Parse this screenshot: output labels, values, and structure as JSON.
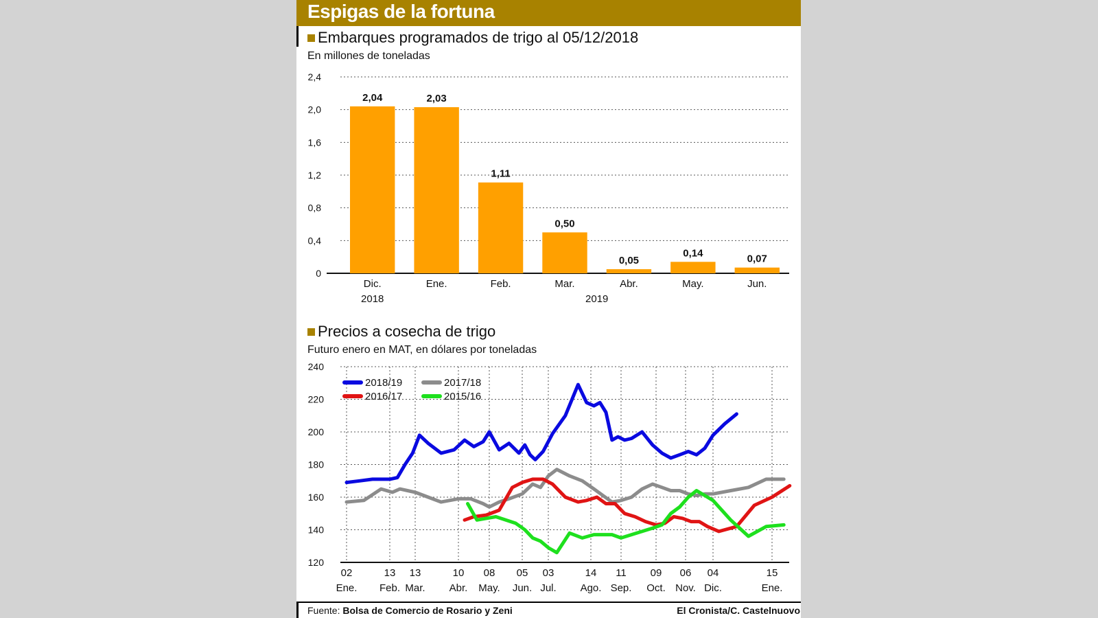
{
  "header": {
    "title": "Espigas de la fortuna"
  },
  "colors": {
    "banner": "#a88200",
    "bar": "#ffa000",
    "s2018": "#0a0ae0",
    "s2017": "#8c8c8c",
    "s2016": "#e01414",
    "s2015": "#1ee01e"
  },
  "chart_data": [
    {
      "type": "bar",
      "title": "Embarques programados de trigo al 05/12/2018",
      "subtitle": "En millones de toneladas",
      "categories": [
        "Dic.",
        "Ene.",
        "Feb.",
        "Mar.",
        "Abr.",
        "May.",
        "Jun."
      ],
      "year_labels": [
        "2018",
        "2019"
      ],
      "values": [
        2.04,
        2.03,
        1.11,
        0.5,
        0.05,
        0.14,
        0.07
      ],
      "value_labels": [
        "2,04",
        "2,03",
        "1,11",
        "0,50",
        "0,05",
        "0,14",
        "0,07"
      ],
      "yticks": [
        "0",
        "0,4",
        "0,8",
        "1,2",
        "1,6",
        "2,0",
        "2,4"
      ],
      "ylim": [
        0,
        2.4
      ],
      "grid": true
    },
    {
      "type": "line",
      "title": "Precios a cosecha de trigo",
      "subtitle": "Futuro enero en MAT, en dólares por toneladas",
      "ylim": [
        120,
        240
      ],
      "yticks": [
        "120",
        "140",
        "160",
        "180",
        "200",
        "220",
        "240"
      ],
      "xticks": [
        {
          "day": "02",
          "month": "Ene."
        },
        {
          "day": "13",
          "month": "Feb."
        },
        {
          "day": "13",
          "month": "Mar."
        },
        {
          "day": "10",
          "month": "Abr."
        },
        {
          "day": "08",
          "month": "May."
        },
        {
          "day": "05",
          "month": "Jun."
        },
        {
          "day": "03",
          "month": "Jul."
        },
        {
          "day": "14",
          "month": "Ago."
        },
        {
          "day": "11",
          "month": "Sep."
        },
        {
          "day": "09",
          "month": "Oct."
        },
        {
          "day": "06",
          "month": "Nov."
        },
        {
          "day": "04",
          "month": "Dic."
        },
        {
          "day": "15",
          "month": "Ene."
        }
      ],
      "grid": true,
      "legend": "top-left",
      "series": [
        {
          "name": "2018/19",
          "color": "#0a0ae0",
          "x": [
            0,
            0.3,
            0.6,
            1.0,
            1.3,
            1.6,
            1.9,
            2.1,
            2.3,
            2.6,
            2.9,
            3.2,
            3.5,
            3.8,
            4.0,
            4.3,
            4.6,
            4.9,
            5.1,
            5.3,
            5.5,
            5.8,
            6.1,
            6.4,
            6.7,
            6.9,
            7.1,
            7.3,
            7.5,
            7.7,
            7.9,
            8.1,
            8.3,
            8.6,
            8.9,
            9.2,
            9.5,
            9.8,
            10.1,
            10.4,
            10.7,
            11.0,
            11.2,
            11.4
          ],
          "y": [
            169,
            170,
            171,
            171,
            172,
            180,
            187,
            198,
            193,
            187,
            189,
            195,
            191,
            194,
            200,
            189,
            193,
            187,
            192,
            186,
            183,
            188,
            199,
            210,
            229,
            218,
            216,
            218,
            212,
            195,
            197,
            195,
            196,
            200,
            192,
            187,
            184,
            186,
            188,
            186,
            190,
            198,
            205,
            211
          ]
        },
        {
          "name": "2017/18",
          "color": "#8c8c8c",
          "x": [
            0,
            0.4,
            0.8,
            1.1,
            1.4,
            1.7,
            2.0,
            2.3,
            2.6,
            3.0,
            3.4,
            3.8,
            4.0,
            4.3,
            4.6,
            5.0,
            5.4,
            5.7,
            6.0,
            6.2,
            6.5,
            6.8,
            7.1,
            7.4,
            7.7,
            8.0,
            8.3,
            8.6,
            8.9,
            9.2,
            9.5,
            9.8,
            10.1,
            10.4,
            10.7,
            11.0,
            11.3,
            11.6,
            11.9,
            12.2
          ],
          "y": [
            157,
            158,
            165,
            163,
            165,
            164,
            163,
            160,
            157,
            159,
            159,
            156,
            154,
            157,
            159,
            162,
            168,
            166,
            173,
            177,
            173,
            170,
            165,
            161,
            157,
            158,
            160,
            165,
            168,
            166,
            164,
            164,
            162,
            161,
            162,
            162,
            164,
            166,
            171,
            171
          ]
        },
        {
          "name": "2016/17",
          "color": "#e01414",
          "x": [
            3.2,
            3.5,
            3.9,
            4.3,
            4.7,
            5.0,
            5.4,
            5.8,
            6.1,
            6.4,
            6.7,
            6.9,
            7.2,
            7.5,
            7.8,
            8.1,
            8.4,
            8.7,
            9.0,
            9.3,
            9.6,
            9.9,
            10.2,
            10.5,
            10.8,
            11.1,
            11.4,
            11.7,
            12.0,
            12.3
          ],
          "y": [
            146,
            148,
            149,
            152,
            166,
            169,
            171,
            171,
            168,
            160,
            157,
            158,
            160,
            156,
            156,
            150,
            148,
            145,
            143,
            144,
            148,
            147,
            145,
            145,
            142,
            139,
            142,
            155,
            160,
            167
          ]
        },
        {
          "name": "2015/16",
          "color": "#1ee01e",
          "x": [
            3.3,
            3.6,
            3.9,
            4.2,
            4.5,
            4.8,
            5.1,
            5.4,
            5.7,
            6.0,
            6.2,
            6.5,
            6.8,
            7.1,
            7.4,
            7.7,
            8.0,
            8.3,
            8.6,
            8.9,
            9.2,
            9.5,
            9.8,
            10.1,
            10.4,
            10.7,
            11.0,
            11.3,
            11.6,
            11.9,
            12.2
          ],
          "y": [
            156,
            146,
            147,
            148,
            146,
            144,
            140,
            135,
            133,
            129,
            126,
            138,
            135,
            137,
            137,
            137,
            135,
            137,
            139,
            141,
            143,
            150,
            154,
            160,
            164,
            161,
            158,
            146,
            136,
            142,
            143
          ]
        }
      ]
    }
  ],
  "footer": {
    "source_label": "Fuente:",
    "source_text": "Bolsa de Comercio de Rosario y Zeni",
    "credit": "El Cronista/C. Castelnuovo"
  }
}
